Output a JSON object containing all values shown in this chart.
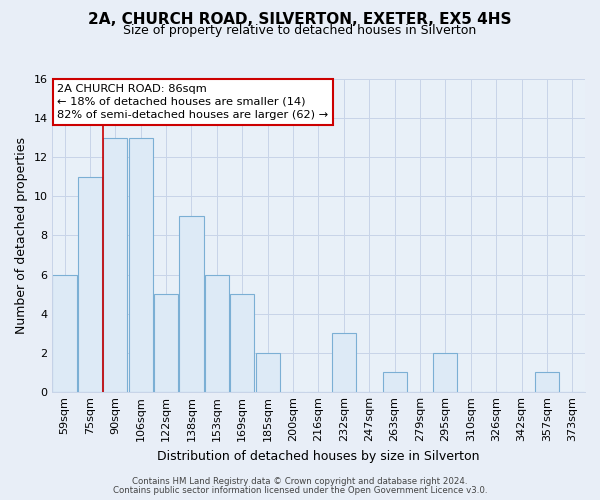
{
  "title": "2A, CHURCH ROAD, SILVERTON, EXETER, EX5 4HS",
  "subtitle": "Size of property relative to detached houses in Silverton",
  "xlabel": "Distribution of detached houses by size in Silverton",
  "ylabel": "Number of detached properties",
  "bar_labels": [
    "59sqm",
    "75sqm",
    "90sqm",
    "106sqm",
    "122sqm",
    "138sqm",
    "153sqm",
    "169sqm",
    "185sqm",
    "200sqm",
    "216sqm",
    "232sqm",
    "247sqm",
    "263sqm",
    "279sqm",
    "295sqm",
    "310sqm",
    "326sqm",
    "342sqm",
    "357sqm",
    "373sqm"
  ],
  "bar_values": [
    6,
    11,
    13,
    13,
    5,
    9,
    6,
    5,
    2,
    0,
    0,
    3,
    0,
    1,
    0,
    2,
    0,
    0,
    0,
    1,
    0
  ],
  "bar_face_color": "#ddeaf6",
  "bar_edge_color": "#7bafd4",
  "vline_color": "#cc0000",
  "annotation_title": "2A CHURCH ROAD: 86sqm",
  "annotation_line1": "← 18% of detached houses are smaller (14)",
  "annotation_line2": "82% of semi-detached houses are larger (62) →",
  "annotation_box_facecolor": "#ffffff",
  "annotation_box_edgecolor": "#cc0000",
  "ylim": [
    0,
    16
  ],
  "yticks": [
    0,
    2,
    4,
    6,
    8,
    10,
    12,
    14,
    16
  ],
  "grid_color": "#c8d4e8",
  "background_color": "#e8eef7",
  "plot_bg_color": "#e8f0f8",
  "footnote1": "Contains HM Land Registry data © Crown copyright and database right 2024.",
  "footnote2": "Contains public sector information licensed under the Open Government Licence v3.0.",
  "title_fontsize": 11,
  "subtitle_fontsize": 9,
  "axis_label_fontsize": 9,
  "tick_fontsize": 8
}
